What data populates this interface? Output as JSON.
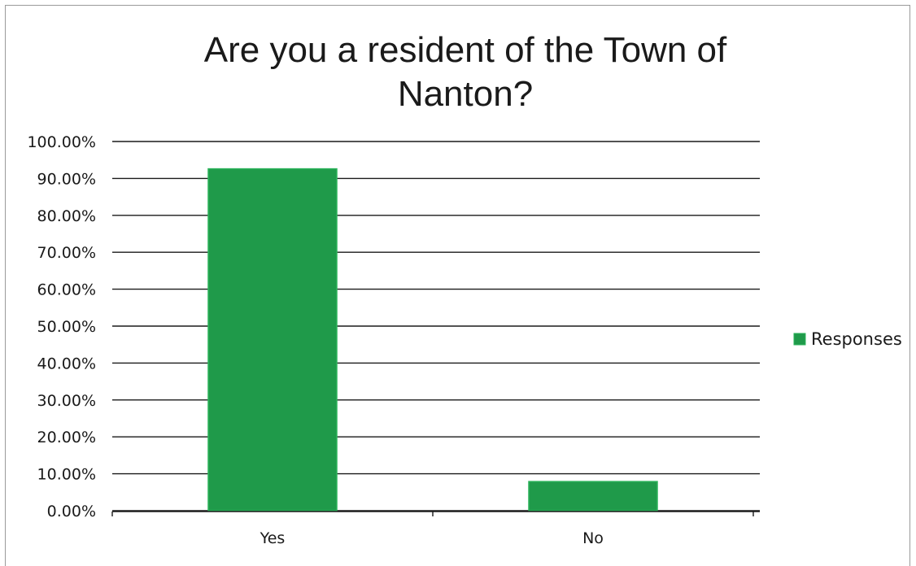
{
  "chart_data": {
    "type": "bar",
    "title_lines": [
      "Are you a resident of the Town of",
      "Nanton?"
    ],
    "categories": [
      "Yes",
      "No"
    ],
    "series": [
      {
        "name": "Responses",
        "values": [
          92.6,
          7.9
        ]
      }
    ],
    "ylim": [
      0,
      100
    ],
    "yticks": [
      0,
      10,
      20,
      30,
      40,
      50,
      60,
      70,
      80,
      90,
      100
    ],
    "ytick_labels": [
      "0.00%",
      "10.00%",
      "20.00%",
      "30.00%",
      "40.00%",
      "50.00%",
      "60.00%",
      "70.00%",
      "80.00%",
      "90.00%",
      "100.00%"
    ],
    "grid": true,
    "legend_position": "right",
    "colors": {
      "bar": "#1f9a4a",
      "bar_edge": "#2bb35a",
      "grid": "#1a1a1a"
    }
  }
}
